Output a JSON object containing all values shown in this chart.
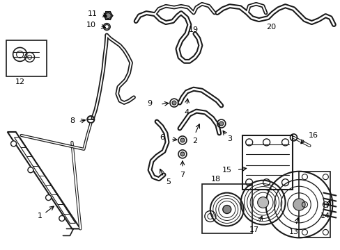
{
  "bg": "#ffffff",
  "lc": "#1a1a1a",
  "fig_w": 4.89,
  "fig_h": 3.6,
  "dpi": 100,
  "xmin": 0,
  "xmax": 489,
  "ymin": 0,
  "ymax": 360
}
